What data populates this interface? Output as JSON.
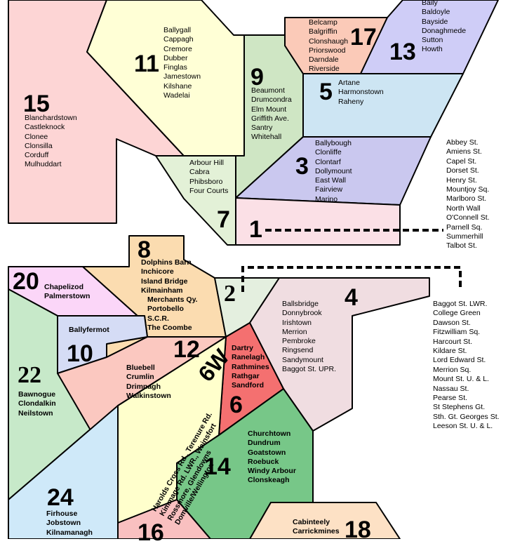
{
  "districts": {
    "d15": {
      "num": "15",
      "places": [
        "Blanchardstown",
        "Castleknock",
        "Clonee",
        "Clonsilla",
        "Corduff",
        "Mulhuddart"
      ]
    },
    "d11": {
      "num": "11",
      "places": [
        "Ballygall",
        "Cappagh",
        "Cremore",
        "Dubber",
        "Finglas",
        "Jamestown",
        "Kilshane",
        "Wadelai"
      ]
    },
    "d9": {
      "num": "9",
      "places": [
        "Beaumont",
        "Drumcondra",
        "Elm Mount",
        "Griffith Ave.",
        "Santry",
        "Whitehall"
      ]
    },
    "d17": {
      "num": "17",
      "places": [
        "Belcamp",
        "Balgriffin",
        "Clonshaugh",
        "Priorswood",
        "Darndale",
        "Riverside"
      ]
    },
    "d13": {
      "num": "13",
      "places": [
        "Baily",
        "Baldoyle",
        "Bayside",
        "Donaghmede",
        "Sutton",
        "Howth"
      ]
    },
    "d5": {
      "num": "5",
      "places": [
        "Artane",
        "Harmonstown",
        "Raheny"
      ]
    },
    "d3": {
      "num": "3",
      "places": [
        "Ballybough",
        "Clonliffe",
        "Clontarf",
        "Dollymount",
        "East Wall",
        "Fairview",
        "Marino"
      ]
    },
    "d7": {
      "num": "7",
      "places": [
        "Arbour Hill",
        "Cabra",
        "Phibsboro",
        "Four Courts"
      ]
    },
    "d1": {
      "num": "1",
      "places": [
        "Abbey St.",
        "Amiens St.",
        "Capel St.",
        "Dorset St.",
        "Henry St.",
        "Mountjoy Sq.",
        "Marlboro St.",
        "North Wall",
        "O'Connell St.",
        "Parnell Sq.",
        "Summerhill",
        "Talbot St."
      ]
    },
    "d8": {
      "num": "8",
      "places": [
        "Dolphins Barn",
        "Inchicore",
        "Island Bridge",
        "Kilmainham",
        "Merchants Qy.",
        "Portobello",
        "S.C.R.",
        "The Coombe"
      ]
    },
    "d20": {
      "num": "20",
      "places": [
        "Chapelizod",
        "Palmerstown"
      ]
    },
    "d10": {
      "num": "10",
      "places": [
        "Ballyfermot"
      ]
    },
    "d22": {
      "num": "22",
      "places": [
        "Bawnogue",
        "Clondalkin",
        "Neilstown"
      ]
    },
    "d12": {
      "num": "12",
      "places": [
        "Bluebell",
        "Crumlin",
        "Drimnagh",
        "Walkinstown"
      ]
    },
    "d2": {
      "num": "2",
      "places": [
        "Baggot St. LWR.",
        "College Green",
        "Dawson St.",
        "Fitzwilliam Sq.",
        "Harcourt St.",
        "Kildare St.",
        "Lord Edward St.",
        "Merrion Sq.",
        "Mount St. U. & L.",
        "Nassau St.",
        "Pearse St.",
        "St Stephens Gt.",
        "Sth. Gt. Georges St.",
        "Leeson St. U. & L."
      ]
    },
    "d4": {
      "num": "4",
      "places": [
        "Ballsbridge",
        "Donnybrook",
        "Irishtown",
        "Merrion",
        "Pembroke",
        "Ringsend",
        "Sandymount",
        "Baggot St. UPR."
      ]
    },
    "d6": {
      "num": "6",
      "places": [
        "Dartry",
        "Ranelagh",
        "Rathmines",
        "Rathgar",
        "Sandford"
      ]
    },
    "d6w": {
      "num": "6W",
      "places": [
        "Harolds Cross Rd., Terenure Rd.",
        "Kimmage Rd. LWR., Wainsfort",
        "Rossmore, Glendowns",
        "Domville/Wellington"
      ]
    },
    "d14": {
      "num": "14",
      "places": [
        "Churchtown",
        "Dundrum",
        "Goatstown",
        "Roebuck",
        "Windy Arbour",
        "Clonskeagh"
      ]
    },
    "d24": {
      "num": "24",
      "places": [
        "Firhouse",
        "Jobstown",
        "Kilnamanagh"
      ]
    },
    "d16": {
      "num": "16",
      "places": []
    },
    "d18": {
      "num": "18",
      "places": [
        "Cabinteely",
        "Carrickmines"
      ]
    }
  },
  "colors": {
    "d15": "#fdd5d5",
    "d11": "#ffffd6",
    "d9": "#cfe6c4",
    "d17": "#fbcab8",
    "d13": "#cfcdf7",
    "d5": "#cde5f3",
    "d3": "#cac8ef",
    "d7": "#e3f1d7",
    "d1": "#fbe0e6",
    "d8": "#fbdcb0",
    "d20": "#fbd6f8",
    "d10": "#d5dcf5",
    "d22": "#c7e9c9",
    "d12": "#fbc8c0",
    "d2": "#e4efdf",
    "d4": "#f0dde1",
    "d6": "#f47070",
    "d6w": "#ffffcc",
    "d14": "#77c788",
    "d24": "#cfe9f9",
    "d16": "#f9c0c0",
    "d18": "#fde1c5"
  }
}
